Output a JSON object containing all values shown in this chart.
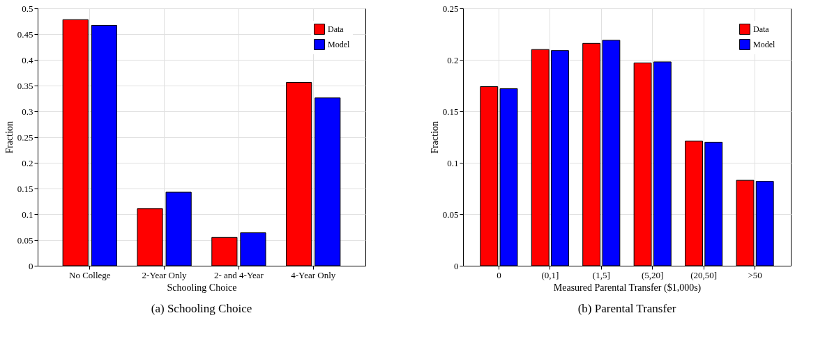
{
  "chart_data": [
    {
      "type": "bar",
      "xlabel": "Schooling Choice",
      "ylabel": "Fraction",
      "categories": [
        "No College",
        "2-Year Only",
        "2- and 4-Year",
        "4-Year Only"
      ],
      "series": [
        {
          "name": "Data",
          "color": "#ff0000",
          "values": [
            0.478,
            0.111,
            0.055,
            0.356
          ]
        },
        {
          "name": "Model",
          "color": "#0000ff",
          "values": [
            0.467,
            0.143,
            0.064,
            0.326
          ]
        }
      ],
      "ylim": [
        0,
        0.5
      ],
      "yticks": [
        0,
        0.05,
        0.1,
        0.15,
        0.2,
        0.25,
        0.3,
        0.35,
        0.4,
        0.45,
        0.5
      ],
      "grid": true,
      "legend": "top right",
      "annotations": [
        "(a) Schooling Choice"
      ]
    },
    {
      "type": "bar",
      "xlabel": "Measured Parental Transfer ($1,000s)",
      "ylabel": "Fraction",
      "categories": [
        "0",
        "(0,1]",
        "(1,5]",
        "(5,20]",
        "(20,50]",
        ">50"
      ],
      "series": [
        {
          "name": "Data",
          "color": "#ff0000",
          "values": [
            0.174,
            0.21,
            0.216,
            0.197,
            0.121,
            0.083
          ]
        },
        {
          "name": "Model",
          "color": "#0000ff",
          "values": [
            0.172,
            0.209,
            0.219,
            0.198,
            0.12,
            0.082
          ]
        }
      ],
      "ylim": [
        0,
        0.25
      ],
      "yticks": [
        0,
        0.05,
        0.1,
        0.15,
        0.2,
        0.25
      ],
      "grid": true,
      "legend": "top right",
      "annotations": [
        "(b) Parental Transfer"
      ]
    }
  ]
}
